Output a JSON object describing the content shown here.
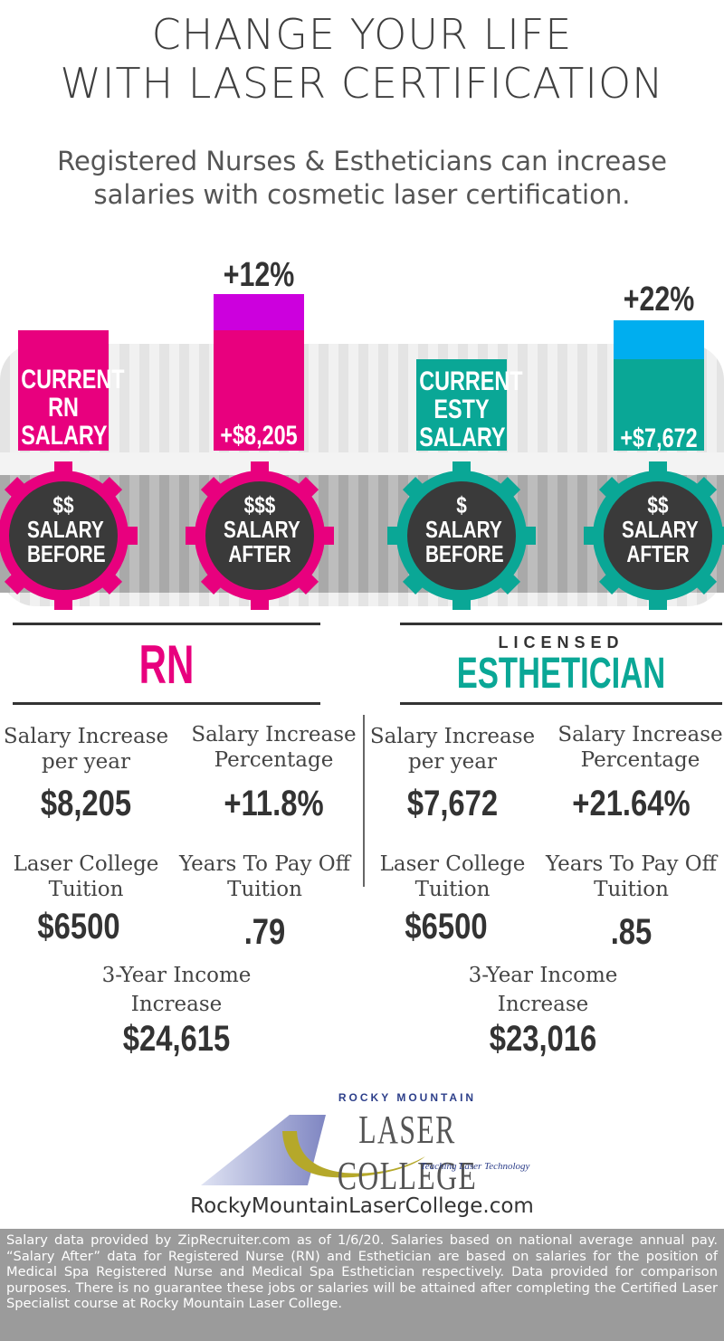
{
  "header": {
    "title_line1": "CHANGE YOUR LIFE",
    "title_line2": "WITH LASER CERTIFICATION",
    "subtitle_line1": "Registered Nurses & Estheticians can increase",
    "subtitle_line2": "salaries with cosmetic laser certification."
  },
  "chart": {
    "rn_current": [
      "CURRENT",
      "RN",
      "SALARY"
    ],
    "rn_after_pct": "+12%",
    "rn_after_amount": "+$8,205",
    "esty_current": [
      "CURRENT",
      "ESTY",
      "SALARY"
    ],
    "esty_after_pct": "+22%",
    "esty_after_amount": "+$7,672",
    "gears": [
      {
        "sym": "$$",
        "l1": "SALARY",
        "l2": "BEFORE"
      },
      {
        "sym": "$$$",
        "l1": "SALARY",
        "l2": "AFTER"
      },
      {
        "sym": "$",
        "l1": "SALARY",
        "l2": "BEFORE"
      },
      {
        "sym": "$$",
        "l1": "SALARY",
        "l2": "AFTER"
      }
    ],
    "colors": {
      "pink": "#e8007e",
      "magenta": "#cc00dd",
      "teal": "#0aa796",
      "sky": "#00aeef",
      "dark": "#3a3a3a"
    }
  },
  "rn": {
    "heading": "RN",
    "sal_inc_label1": "Salary Increase",
    "sal_inc_label2": "per year",
    "sal_inc_value": "$8,205",
    "pct_label1": "Salary Increase",
    "pct_label2": "Percentage",
    "pct_value": "+11.8%",
    "tuition_label1": "Laser College",
    "tuition_label2": "Tuition",
    "tuition_value": "$6500",
    "years_label1": "Years To Pay Off",
    "years_label2": "Tuition",
    "years_value": ".79",
    "three_label1": "3-Year Income",
    "three_label2": "Increase",
    "three_value": "$24,615"
  },
  "esty": {
    "heading_small": "LICENSED",
    "heading": "ESTHETICIAN",
    "sal_inc_label1": "Salary Increase",
    "sal_inc_label2": "per year",
    "sal_inc_value": "$7,672",
    "pct_label1": "Salary Increase",
    "pct_label2": "Percentage",
    "pct_value": "+21.64%",
    "tuition_label1": "Laser College",
    "tuition_label2": "Tuition",
    "tuition_value": "$6500",
    "years_label1": "Years To Pay Off",
    "years_label2": "Tuition",
    "years_value": ".85",
    "three_label1": "3-Year Income",
    "three_label2": "Increase",
    "three_value": "$23,016"
  },
  "logo": {
    "top": "ROCKY MOUNTAIN",
    "main": "LASER COLLEGE",
    "tagline": "Teaching Laser Technology"
  },
  "website": "RockyMountainLaserCollege.com",
  "footer": "Salary data provided by ZipRecruiter.com as of 1/6/20. Salaries based on national average annual pay. “Salary After” data for Registered Nurse (RN) and Esthetician are based on salaries for the position of Medical Spa Registered Nurse and Medical Spa Esthetician respectively. Data provided for comparison purposes. There is no guarantee these jobs or salaries will be attained after completing the Certified Laser Specialist course at Rocky Mountain Laser College."
}
